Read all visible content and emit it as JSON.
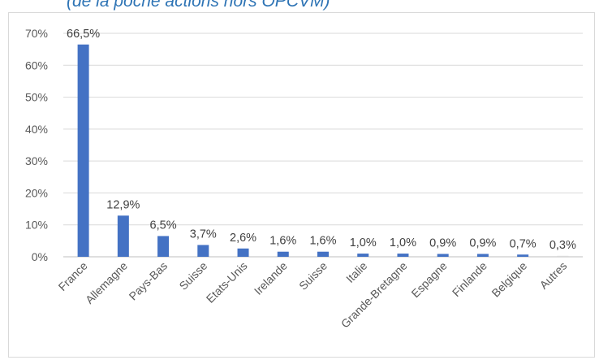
{
  "title": "(de la poche actions hors OPCVM)",
  "chart_data": {
    "type": "bar",
    "categories": [
      "France",
      "Allemagne",
      "Pays-Bas",
      "Suisse",
      "Etats-Unis",
      "Irelande",
      "Suisse",
      "Italie",
      "Grande-Bretagne",
      "Espagne",
      "Finlande",
      "Belgique",
      "Autres"
    ],
    "values": [
      66.5,
      12.9,
      6.5,
      3.7,
      2.6,
      1.6,
      1.6,
      1.0,
      1.0,
      0.9,
      0.9,
      0.7,
      0.3
    ],
    "data_labels": [
      "66,5%",
      "12,9%",
      "6,5%",
      "3,7%",
      "2,6%",
      "1,6%",
      "1,6%",
      "1,0%",
      "1,0%",
      "0,9%",
      "0,9%",
      "0,7%",
      "0,3%"
    ],
    "y_ticks": [
      0,
      10,
      20,
      30,
      40,
      50,
      60,
      70
    ],
    "y_tick_labels": [
      "0%",
      "10%",
      "20%",
      "30%",
      "40%",
      "50%",
      "60%",
      "70%"
    ],
    "ylim": [
      0,
      70
    ],
    "grid": true,
    "bar_colors": [
      "#4472c4",
      "#4472c4",
      "#4472c4",
      "#4472c4",
      "#4472c4",
      "#4472c4",
      "#4472c4",
      "#4472c4",
      "#4472c4",
      "#4472c4",
      "#4472c4",
      "#4472c4",
      "#d9d9d9"
    ],
    "xlabel": "",
    "ylabel": ""
  }
}
